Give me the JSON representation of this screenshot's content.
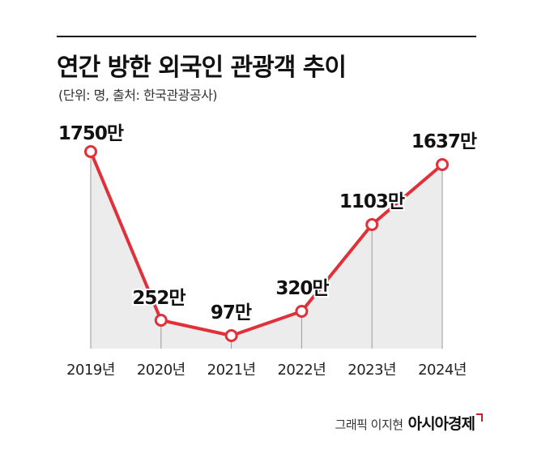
{
  "title": "연간 방한 외국인 관광객 추이",
  "subtitle": "(단위: 명, 출처: 한국관광공사)",
  "credit": {
    "graphic": "그래픽 이지현",
    "brand": "아시아경제"
  },
  "colors": {
    "line": "#e0303a",
    "marker_fill": "#ffffff",
    "area": "#ececec",
    "drop_line": "#9a9a9a",
    "text": "#111111"
  },
  "chart_data": {
    "type": "line",
    "categories": [
      "2019년",
      "2020년",
      "2021년",
      "2022년",
      "2023년",
      "2024년"
    ],
    "values": [
      1750,
      252,
      97,
      320,
      1103,
      1637
    ],
    "data_labels": [
      "1750만",
      "252만",
      "97만",
      "320만",
      "1103만",
      "1637만"
    ],
    "ylim": [
      0,
      1750
    ],
    "grid": false,
    "legend": "none",
    "area_fill": true
  }
}
